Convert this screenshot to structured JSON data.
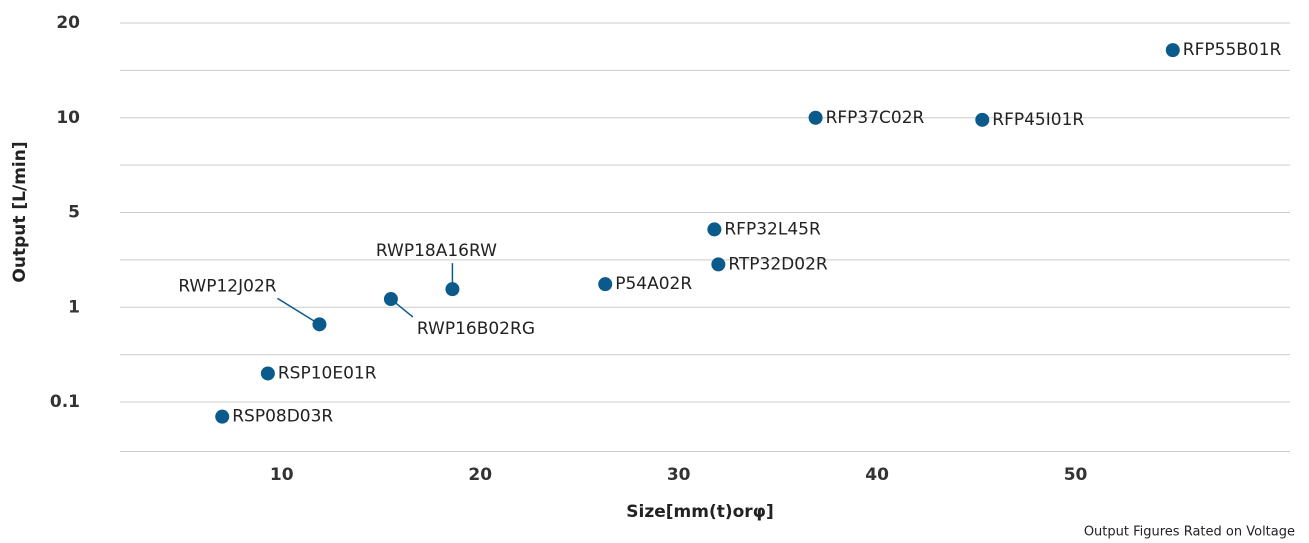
{
  "chart_data": {
    "type": "scatter",
    "xlabel": "Size[mm(t)orφ]",
    "ylabel": "Output [L/min]",
    "note": "Output Figures Rated on Voltage",
    "series": [
      {
        "color": "#0b5a8c",
        "names": [
          "RSP08D03R",
          "RSP10E01R",
          "RWP12J02R",
          "RWP16B02RG",
          "RWP18A16RW",
          "P54A02R",
          "RTP32D02R",
          "RFP32L45R",
          "RFP37C02R",
          "RFP45I01R",
          "RFP55B01R"
        ],
        "x": [
          7.0,
          9.3,
          11.9,
          15.5,
          18.6,
          26.3,
          32.0,
          31.8,
          36.9,
          45.3,
          54.9
        ],
        "values": [
          0.07,
          0.2,
          0.66,
          1.15,
          1.36,
          1.48,
          2.07,
          3.75,
          10,
          9.85,
          16.4
        ]
      }
    ],
    "xlim": [
      2,
      60
    ],
    "xticks": [
      10,
      20,
      30,
      40,
      50
    ],
    "ylim": [
      0.03,
      20
    ],
    "yticks": [
      0.1,
      1,
      5,
      10,
      20
    ],
    "grid": true
  }
}
